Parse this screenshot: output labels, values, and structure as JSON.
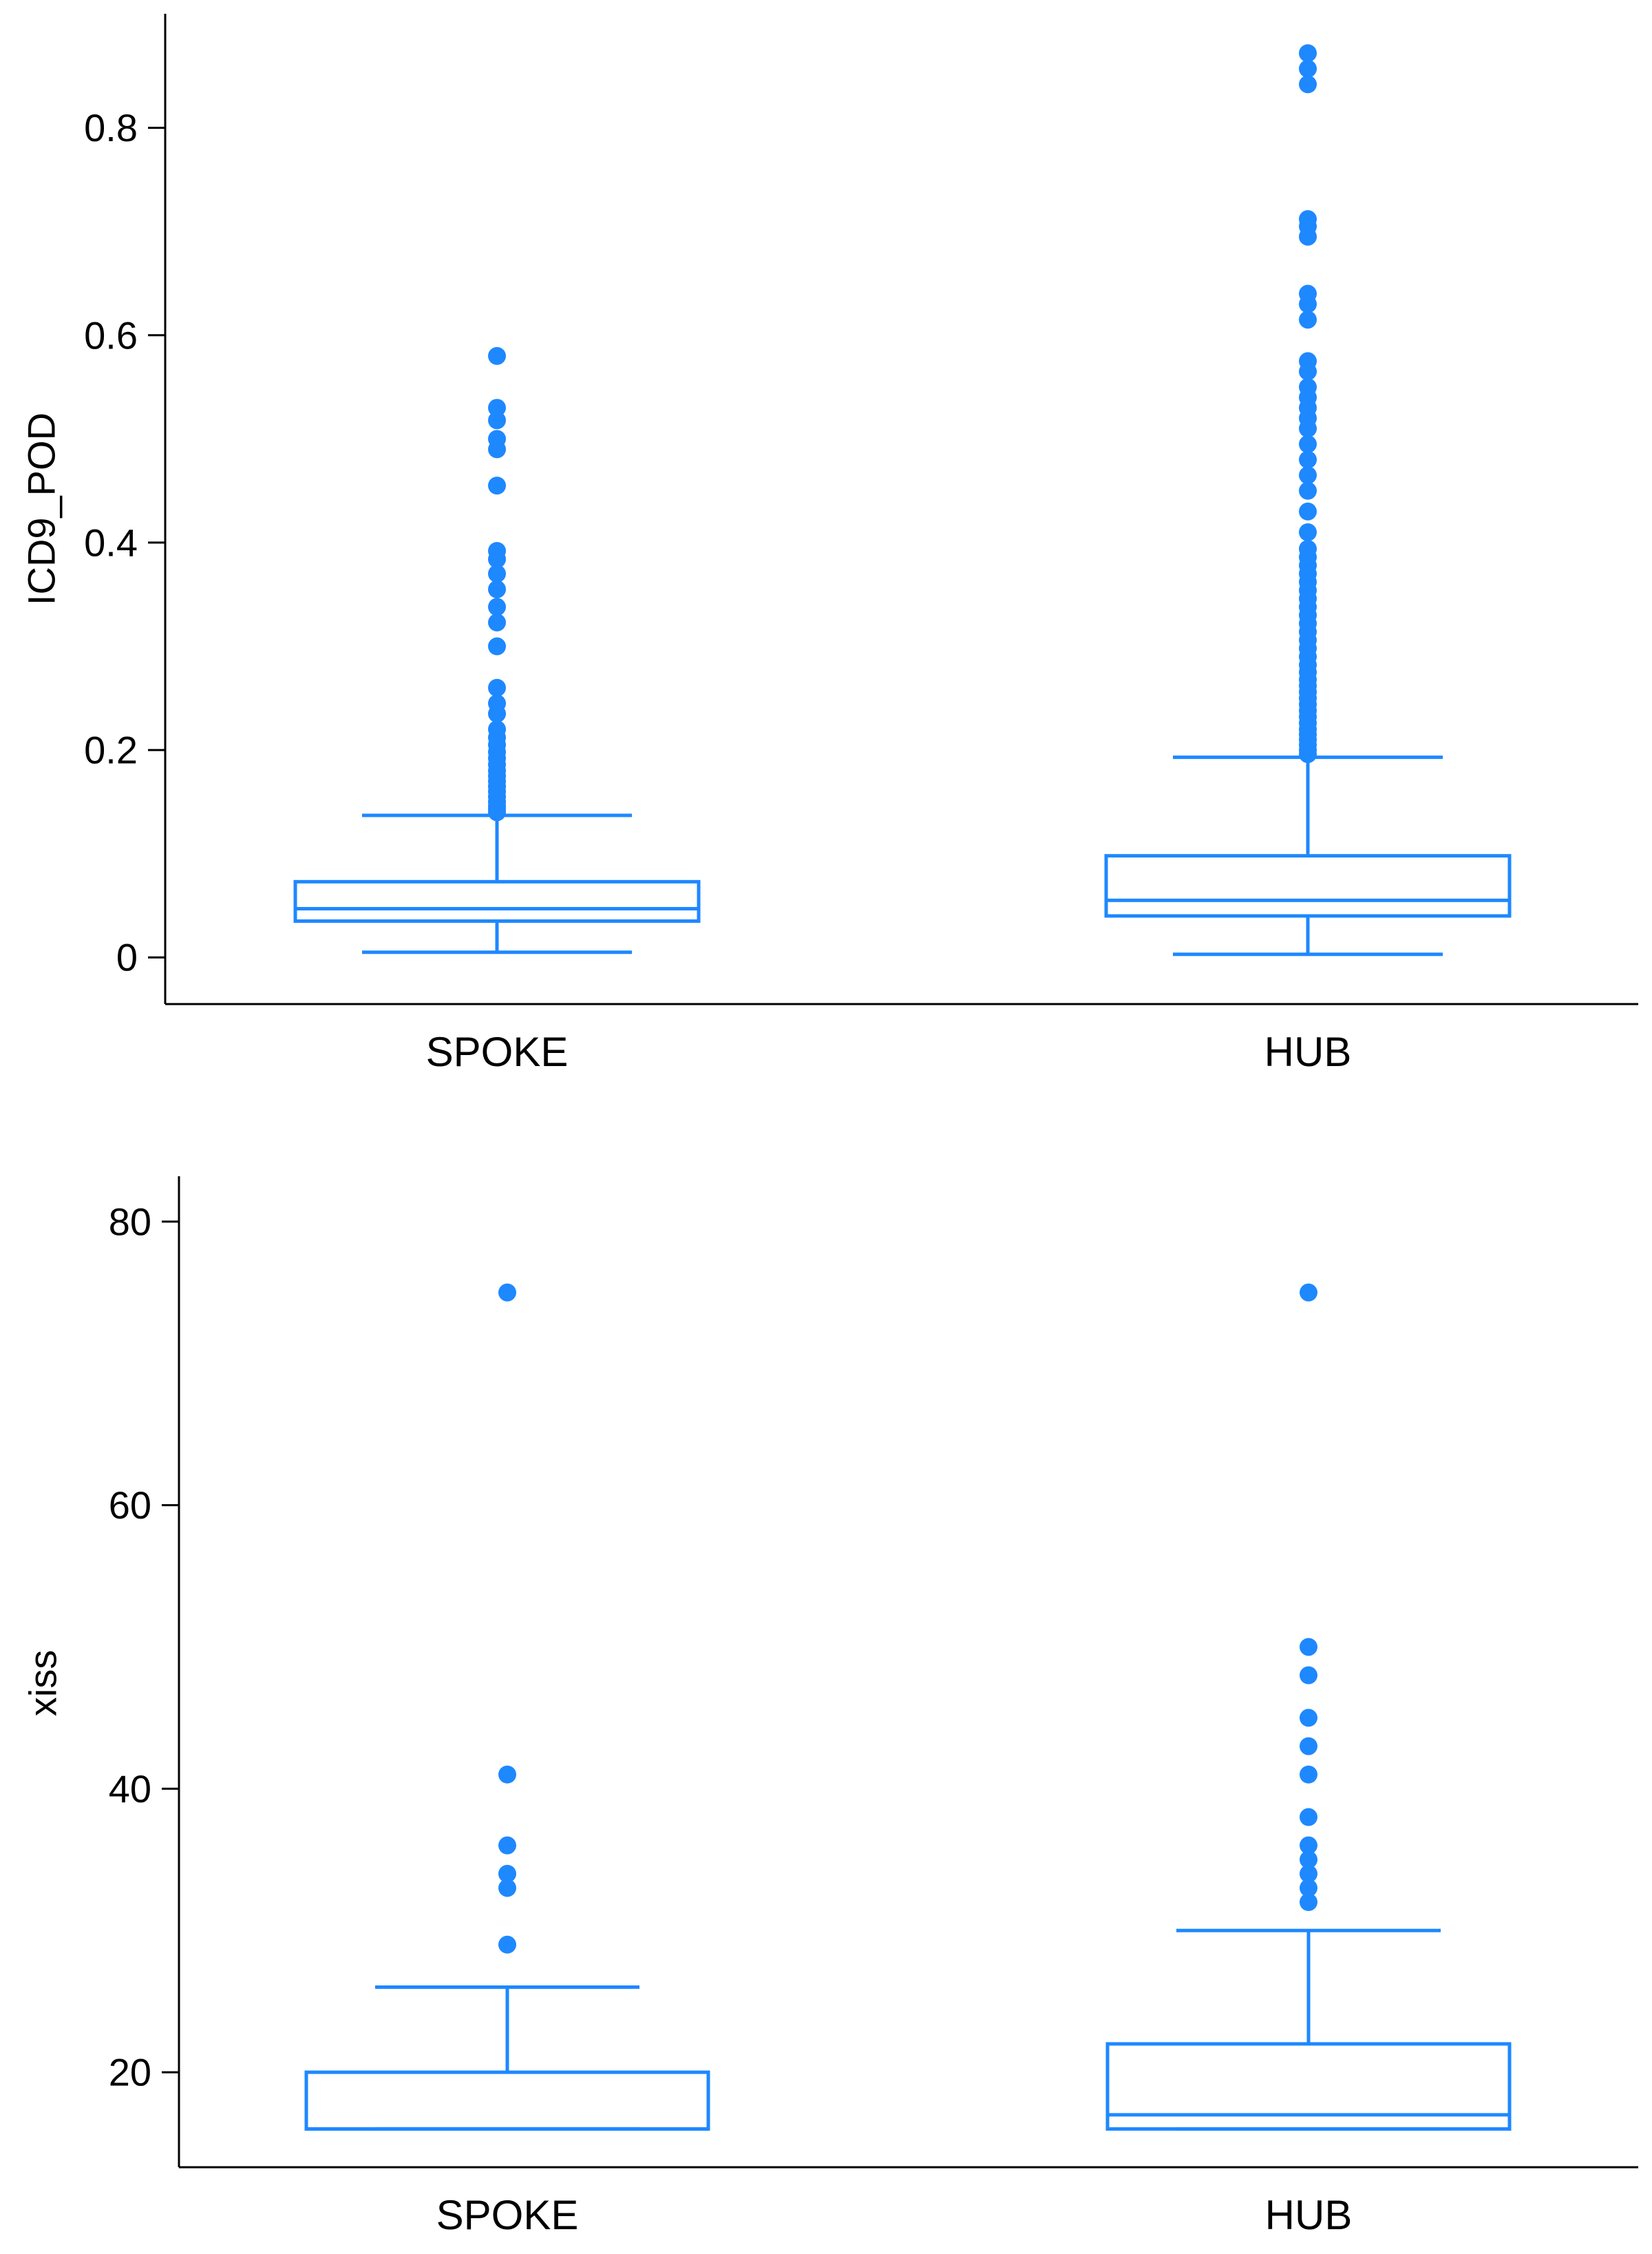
{
  "colors": {
    "box": "#1e88ff",
    "axis": "#000000",
    "background": "#ffffff"
  },
  "chart_data": [
    {
      "type": "boxplot",
      "title": "",
      "xlabel": "",
      "ylabel": "ICD9_POD",
      "categories": [
        "SPOKE",
        "HUB"
      ],
      "ylim": [
        -0.045,
        0.91
      ],
      "yticks": [
        0,
        0.2,
        0.4,
        0.6,
        0.8
      ],
      "ytick_labels": [
        "0",
        "0.2",
        "0.4",
        "0.6",
        "0.8"
      ],
      "boxes": [
        {
          "category": "SPOKE",
          "whisker_low": 0.005,
          "q1": 0.035,
          "median": 0.047,
          "q3": 0.073,
          "whisker_high": 0.137,
          "outliers": [
            0.14,
            0.143,
            0.146,
            0.15,
            0.155,
            0.16,
            0.165,
            0.17,
            0.175,
            0.18,
            0.186,
            0.192,
            0.198,
            0.205,
            0.212,
            0.22,
            0.235,
            0.245,
            0.26,
            0.3,
            0.323,
            0.338,
            0.355,
            0.37,
            0.384,
            0.392,
            0.455,
            0.49,
            0.5,
            0.518,
            0.53,
            0.58
          ]
        },
        {
          "category": "HUB",
          "whisker_low": 0.003,
          "q1": 0.04,
          "median": 0.055,
          "q3": 0.098,
          "whisker_high": 0.193,
          "outliers": [
            0.196,
            0.2,
            0.205,
            0.21,
            0.215,
            0.22,
            0.226,
            0.232,
            0.238,
            0.244,
            0.25,
            0.256,
            0.262,
            0.268,
            0.275,
            0.282,
            0.29,
            0.298,
            0.306,
            0.314,
            0.322,
            0.33,
            0.338,
            0.346,
            0.354,
            0.362,
            0.37,
            0.378,
            0.386,
            0.394,
            0.41,
            0.43,
            0.45,
            0.465,
            0.48,
            0.495,
            0.51,
            0.52,
            0.53,
            0.54,
            0.55,
            0.565,
            0.575,
            0.615,
            0.63,
            0.64,
            0.695,
            0.705,
            0.712,
            0.842,
            0.857,
            0.872
          ]
        }
      ]
    },
    {
      "type": "boxplot",
      "title": "",
      "xlabel": "",
      "ylabel": "xiss",
      "categories": [
        "SPOKE",
        "HUB"
      ],
      "ylim": [
        13.3,
        83.2
      ],
      "yticks": [
        20,
        40,
        60,
        80
      ],
      "ytick_labels": [
        "20",
        "40",
        "60",
        "80"
      ],
      "boxes": [
        {
          "category": "SPOKE",
          "whisker_low": 16,
          "q1": 16,
          "median": 16,
          "q3": 20,
          "whisker_high": 26,
          "outliers": [
            29,
            33,
            34,
            36,
            41,
            75
          ]
        },
        {
          "category": "HUB",
          "whisker_low": 16,
          "q1": 16,
          "median": 17,
          "q3": 22,
          "whisker_high": 30,
          "outliers": [
            32,
            33,
            34,
            35,
            36,
            38,
            41,
            43,
            45,
            48,
            50,
            75
          ]
        }
      ]
    }
  ]
}
